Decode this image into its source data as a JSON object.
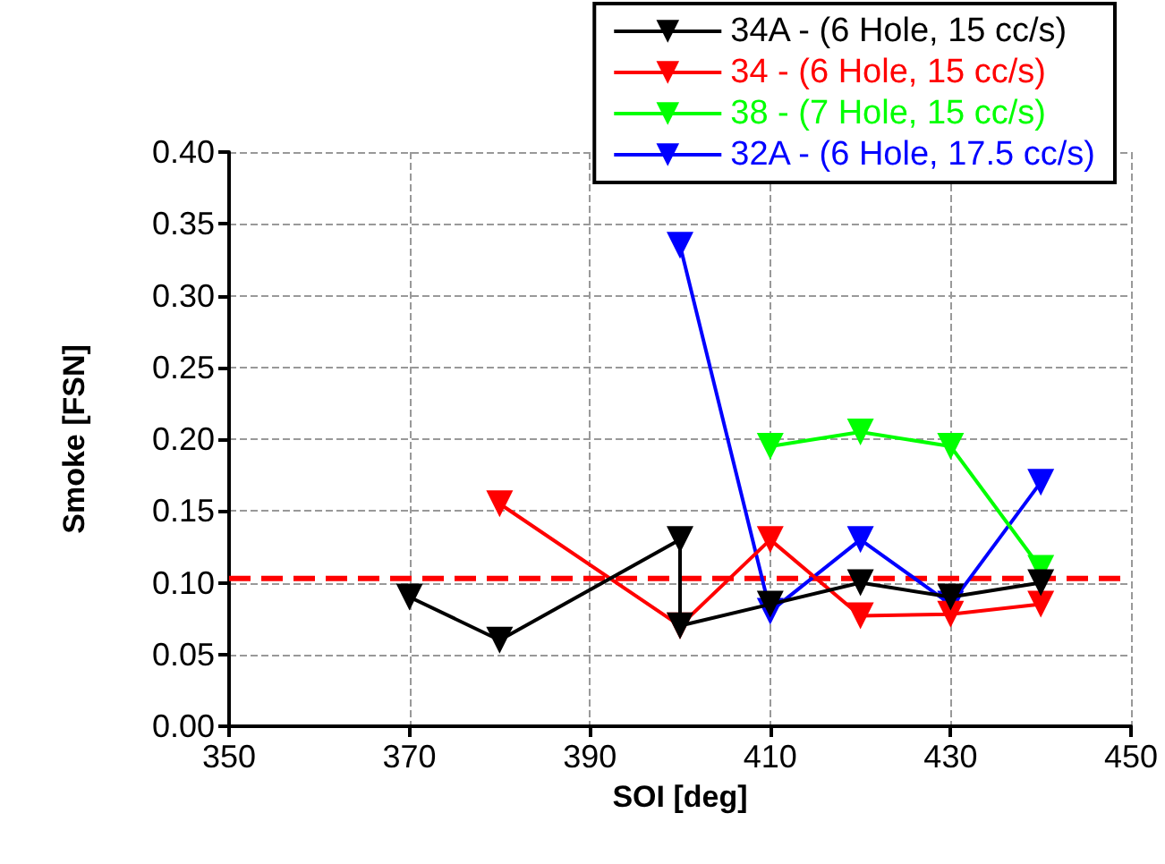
{
  "chart_data": {
    "type": "line",
    "xlabel": "SOI [deg]",
    "ylabel": "Smoke [FSN]",
    "xlim": [
      350,
      450
    ],
    "xticks": [
      350,
      370,
      390,
      410,
      430,
      450
    ],
    "ylim": [
      0,
      0.4
    ],
    "yticks": [
      {
        "value": 0,
        "label": "0.00"
      },
      {
        "value": 0.05,
        "label": "0.05"
      },
      {
        "value": 0.1,
        "label": "0.10"
      },
      {
        "value": 0.15,
        "label": "0.15"
      },
      {
        "value": 0.2,
        "label": "0.20"
      },
      {
        "value": 0.25,
        "label": "0.25"
      },
      {
        "value": 0.3,
        "label": "0.30"
      },
      {
        "value": 0.35,
        "label": "0.35"
      },
      {
        "value": 0.4,
        "label": "0.40"
      }
    ],
    "grid": true,
    "legend": "top right",
    "marker": "triangle",
    "line_style": "solid",
    "series": [
      {
        "name": "34A - (6 Hole, 15 cc/s)",
        "color": "#000000",
        "x": [
          370,
          380,
          400,
          400,
          410,
          420,
          430,
          440
        ],
        "values": [
          0.09,
          0.06,
          0.13,
          0.07,
          0.085,
          0.1,
          0.09,
          0.1
        ]
      },
      {
        "name": "34 - (6 Hole, 15 cc/s)",
        "color": "#ff0000",
        "x": [
          380,
          400,
          410,
          420,
          430,
          440
        ],
        "values": [
          0.155,
          0.07,
          0.13,
          0.077,
          0.078,
          0.085
        ]
      },
      {
        "name": "38 - (7 Hole, 15 cc/s)",
        "color": "#00ff00",
        "x": [
          410,
          420,
          430,
          440
        ],
        "values": [
          0.195,
          0.205,
          0.195,
          0.11
        ]
      },
      {
        "name": "32A - (6 Hole, 17.5 cc/s)",
        "color": "#0000ff",
        "x": [
          400,
          410,
          420,
          430,
          440
        ],
        "values": [
          0.335,
          0.08,
          0.13,
          0.085,
          0.17
        ]
      }
    ],
    "ref_lines": [
      {
        "axis": "y",
        "value": 0.103,
        "color": "#ff0000",
        "line_style": "dashed"
      }
    ]
  }
}
